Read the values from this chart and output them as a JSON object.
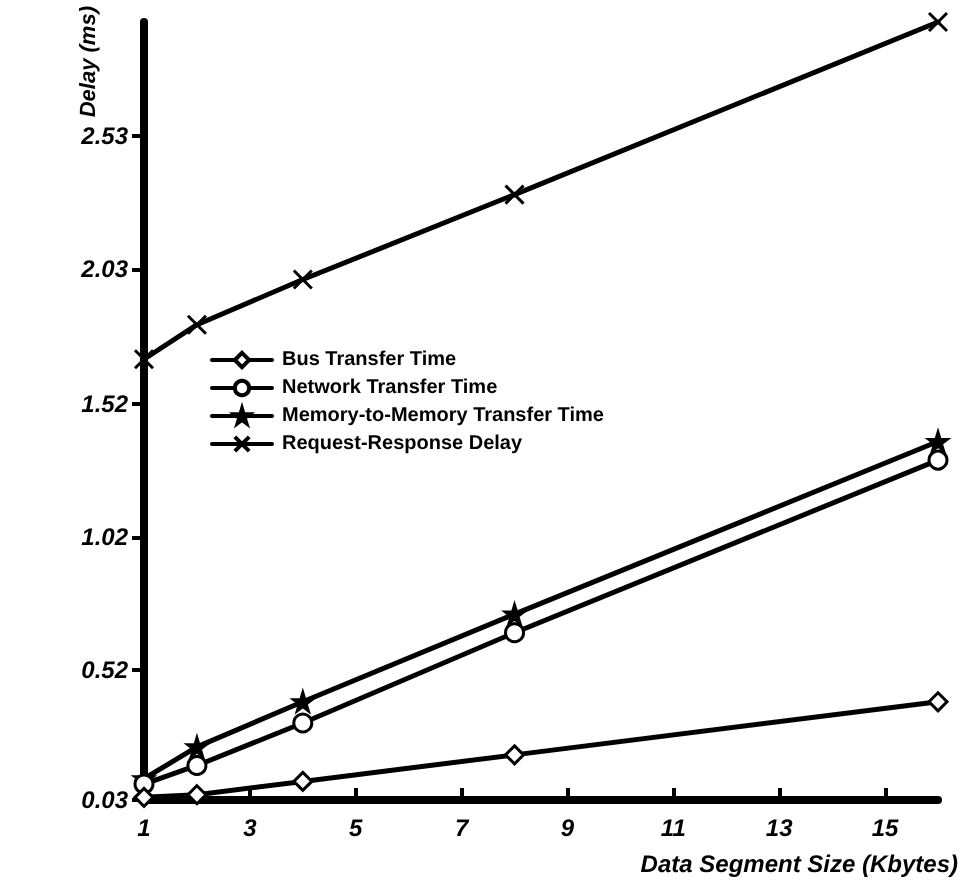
{
  "chart_data": {
    "type": "line",
    "xlabel": "Data Segment Size (Kbytes)",
    "ylabel": "Delay (ms)",
    "x": [
      1,
      2,
      4,
      8,
      16
    ],
    "series": [
      {
        "name": "Bus Transfer Time",
        "color": "#000000",
        "marker": "diamond",
        "values": [
          0.04,
          0.05,
          0.1,
          0.2,
          0.4
        ]
      },
      {
        "name": "Network Transfer Time",
        "color": "#000000",
        "marker": "circle",
        "values": [
          0.09,
          0.16,
          0.32,
          0.66,
          1.31
        ]
      },
      {
        "name": "Memory-to-Memory Transfer Time",
        "color": "#000000",
        "marker": "star",
        "values": [
          0.11,
          0.23,
          0.4,
          0.73,
          1.38
        ]
      },
      {
        "name": "Request-Response Delay",
        "color": "#000000",
        "marker": "cross",
        "values": [
          1.69,
          1.82,
          1.99,
          2.31,
          2.96
        ]
      }
    ],
    "xlim": [
      1,
      16
    ],
    "xticks": [
      1,
      3,
      5,
      7,
      9,
      11,
      13,
      15
    ],
    "ylim": [
      0.03,
      2.96
    ],
    "yticks": [
      0.03,
      0.52,
      1.02,
      1.52,
      2.03,
      2.53
    ],
    "grid": false,
    "legend": "left",
    "line_style": "solid"
  }
}
